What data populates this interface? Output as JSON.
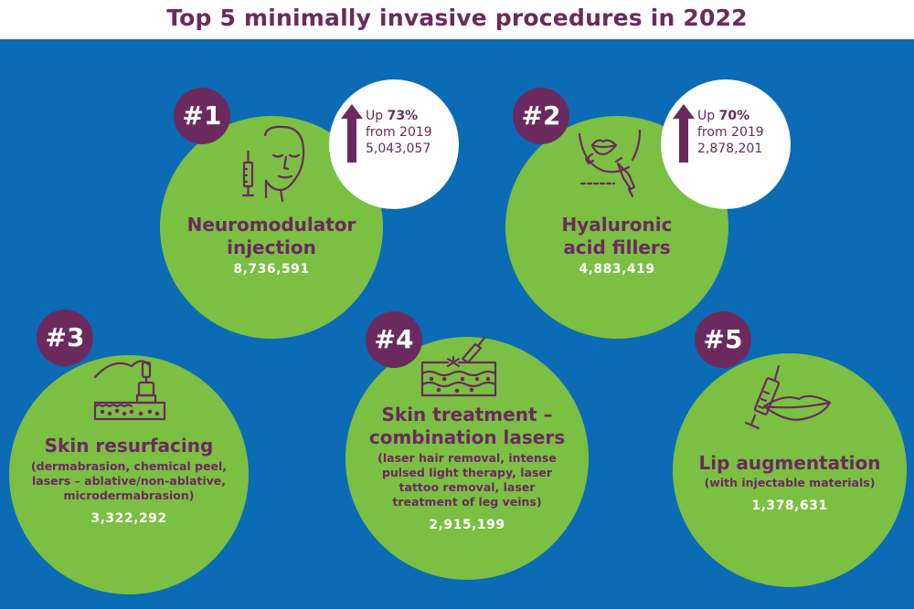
{
  "title": "Top 5 minimally invasive procedures in 2022",
  "colors": {
    "title": "#6b2a5e",
    "background": "#0c6bb5",
    "circle": "#7bbf43",
    "badge": "#6b2a5e",
    "stat_bubble": "#ffffff"
  },
  "procedures": [
    {
      "rank": "#1",
      "name_lines": [
        "Neuromodulator",
        "injection"
      ],
      "detail_lines": [],
      "count": "8,736,591",
      "icon": "face-syringe-icon",
      "stat": {
        "change_prefix": "Up ",
        "change": "73%",
        "from": "from 2019",
        "count": "5,043,057"
      }
    },
    {
      "rank": "#2",
      "name_lines": [
        "Hyaluronic",
        "acid fillers"
      ],
      "detail_lines": [],
      "count": "4,883,419",
      "icon": "lips-filler-icon",
      "stat": {
        "change_prefix": "Up ",
        "change": "70%",
        "from": "from 2019",
        "count": "2,878,201"
      }
    },
    {
      "rank": "#3",
      "name_lines": [
        "Skin resurfacing"
      ],
      "detail_lines": [
        "(dermabrasion, chemical peel,",
        "lasers – ablative/non-ablative,",
        "microdermabrasion)"
      ],
      "count": "3,322,292",
      "icon": "dermabrasion-device-icon"
    },
    {
      "rank": "#4",
      "name_lines": [
        "Skin treatment –",
        "combination lasers"
      ],
      "detail_lines": [
        "(laser hair removal, intense",
        "pulsed light therapy, laser",
        "tattoo removal, laser",
        "treatment of leg veins)"
      ],
      "count": "2,915,199",
      "icon": "laser-skin-icon"
    },
    {
      "rank": "#5",
      "name_lines": [
        "Lip augmentation"
      ],
      "detail_lines": [
        "(with injectable materials)"
      ],
      "count": "1,378,631",
      "icon": "lip-syringe-icon"
    }
  ]
}
